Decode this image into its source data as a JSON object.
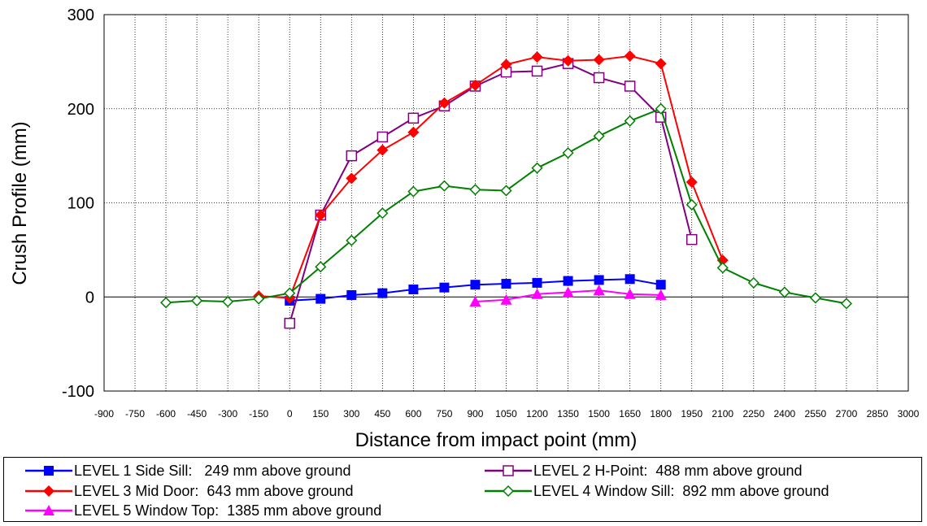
{
  "chart_data": {
    "type": "line",
    "xlabel": "Distance from impact point (mm)",
    "ylabel": "Crush Profile (mm)",
    "xlim": [
      -900,
      3000
    ],
    "ylim": [
      -100,
      300
    ],
    "x_ticks": [
      "-900",
      "-750",
      "-600",
      "-450",
      "-300",
      "-150",
      "0",
      "150",
      "300",
      "450",
      "600",
      "750",
      "900",
      "1050",
      "1200",
      "1350",
      "1500",
      "1650",
      "1800",
      "1950",
      "2100",
      "2250",
      "2400",
      "2550",
      "2700",
      "2850",
      "3000"
    ],
    "y_ticks": [
      "-100",
      "0",
      "100",
      "200",
      "300"
    ],
    "grid": true,
    "legend_position": "bottom",
    "series": [
      {
        "name": "LEVEL 1 Side Sill:   249 mm above ground",
        "color": "#0000ff",
        "marker": "filled-square",
        "points": [
          [
            0,
            -4
          ],
          [
            150,
            -2
          ],
          [
            300,
            2
          ],
          [
            450,
            4
          ],
          [
            600,
            8
          ],
          [
            750,
            10
          ],
          [
            900,
            13
          ],
          [
            1050,
            14
          ],
          [
            1200,
            15
          ],
          [
            1350,
            17
          ],
          [
            1500,
            18
          ],
          [
            1650,
            19
          ],
          [
            1800,
            13
          ]
        ]
      },
      {
        "name": "LEVEL 2 H-Point:  488 mm above ground",
        "color": "#800080",
        "marker": "hollow-square",
        "points": [
          [
            0,
            -28
          ],
          [
            150,
            87
          ],
          [
            300,
            150
          ],
          [
            450,
            170
          ],
          [
            600,
            190
          ],
          [
            750,
            203
          ],
          [
            900,
            224
          ],
          [
            1050,
            239
          ],
          [
            1200,
            240
          ],
          [
            1350,
            248
          ],
          [
            1500,
            233
          ],
          [
            1650,
            224
          ],
          [
            1800,
            191
          ],
          [
            1950,
            61
          ]
        ]
      },
      {
        "name": "LEVEL 3 Mid Door:  643 mm above ground",
        "color": "#ff0000",
        "marker": "filled-diamond",
        "points": [
          [
            -150,
            1
          ],
          [
            0,
            -1
          ],
          [
            150,
            87
          ],
          [
            300,
            126
          ],
          [
            450,
            156
          ],
          [
            600,
            175
          ],
          [
            750,
            206
          ],
          [
            900,
            225
          ],
          [
            1050,
            247
          ],
          [
            1200,
            255
          ],
          [
            1350,
            251
          ],
          [
            1500,
            252
          ],
          [
            1650,
            256
          ],
          [
            1800,
            248
          ],
          [
            1950,
            122
          ],
          [
            2100,
            39
          ]
        ]
      },
      {
        "name": "LEVEL 4 Window Sill:  892 mm above ground",
        "color": "#008000",
        "marker": "hollow-diamond",
        "points": [
          [
            -600,
            -6
          ],
          [
            -450,
            -4
          ],
          [
            -300,
            -5
          ],
          [
            -150,
            -2
          ],
          [
            0,
            4
          ],
          [
            150,
            32
          ],
          [
            300,
            60
          ],
          [
            450,
            89
          ],
          [
            600,
            112
          ],
          [
            750,
            118
          ],
          [
            900,
            114
          ],
          [
            1050,
            113
          ],
          [
            1200,
            137
          ],
          [
            1350,
            153
          ],
          [
            1500,
            171
          ],
          [
            1650,
            187
          ],
          [
            1800,
            200
          ],
          [
            1950,
            98
          ],
          [
            2100,
            31
          ],
          [
            2250,
            15
          ],
          [
            2400,
            5
          ],
          [
            2550,
            -1
          ],
          [
            2700,
            -7
          ]
        ]
      },
      {
        "name": "LEVEL 5 Window Top:  1385 mm above ground",
        "color": "#ff00ff",
        "marker": "filled-triangle",
        "points": [
          [
            900,
            -5
          ],
          [
            1050,
            -3
          ],
          [
            1200,
            3
          ],
          [
            1350,
            5
          ],
          [
            1500,
            7
          ],
          [
            1650,
            3
          ],
          [
            1800,
            2
          ]
        ]
      }
    ]
  }
}
